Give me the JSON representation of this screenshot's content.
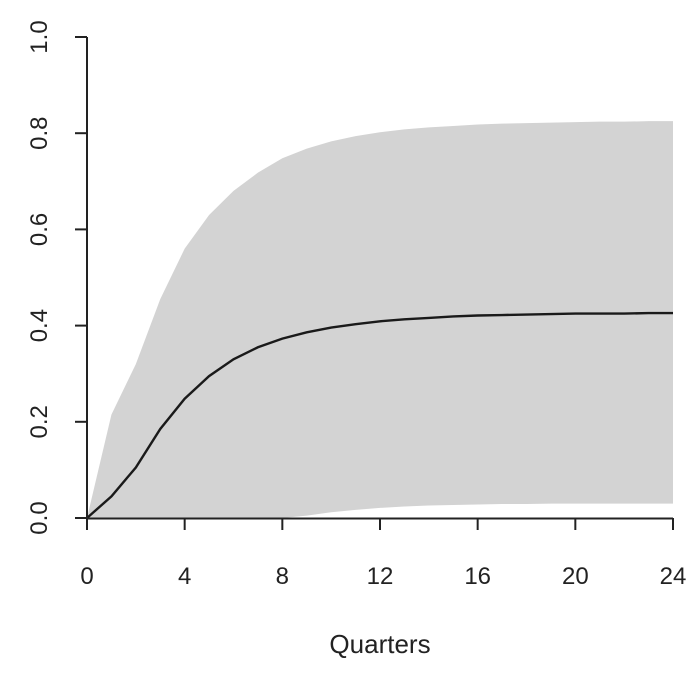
{
  "chart_data": {
    "type": "area",
    "xlabel": "Quarters",
    "ylabel": "",
    "title": "",
    "xlim": [
      0,
      24
    ],
    "ylim": [
      0,
      1
    ],
    "xticks": [
      "0",
      "4",
      "8",
      "12",
      "16",
      "20",
      "24"
    ],
    "yticks": [
      "0.0",
      "0.2",
      "0.4",
      "0.6",
      "0.8",
      "1.0"
    ],
    "grid": false,
    "legend": "none",
    "colors": {
      "band": "#d3d3d3",
      "line": "#1a1a1a"
    },
    "x": [
      0,
      1,
      2,
      3,
      4,
      5,
      6,
      7,
      8,
      9,
      10,
      11,
      12,
      13,
      14,
      15,
      16,
      17,
      18,
      19,
      20,
      21,
      22,
      23,
      24
    ],
    "series": [
      {
        "role": "median",
        "values": [
          0.0,
          0.045,
          0.105,
          0.185,
          0.248,
          0.295,
          0.33,
          0.355,
          0.373,
          0.386,
          0.396,
          0.403,
          0.409,
          0.413,
          0.416,
          0.419,
          0.421,
          0.422,
          0.423,
          0.424,
          0.425,
          0.425,
          0.425,
          0.426,
          0.426
        ]
      },
      {
        "role": "upper",
        "values": [
          0.0,
          0.215,
          0.32,
          0.455,
          0.56,
          0.63,
          0.68,
          0.718,
          0.748,
          0.768,
          0.783,
          0.794,
          0.802,
          0.808,
          0.812,
          0.815,
          0.818,
          0.82,
          0.821,
          0.822,
          0.823,
          0.824,
          0.824,
          0.825,
          0.825
        ]
      },
      {
        "role": "lower",
        "values": [
          0.0,
          0.0,
          0.0,
          0.0,
          0.0,
          0.0,
          0.0,
          0.0,
          0.0,
          0.005,
          0.012,
          0.017,
          0.021,
          0.024,
          0.026,
          0.027,
          0.028,
          0.029,
          0.029,
          0.03,
          0.03,
          0.03,
          0.03,
          0.03,
          0.03
        ]
      }
    ]
  }
}
